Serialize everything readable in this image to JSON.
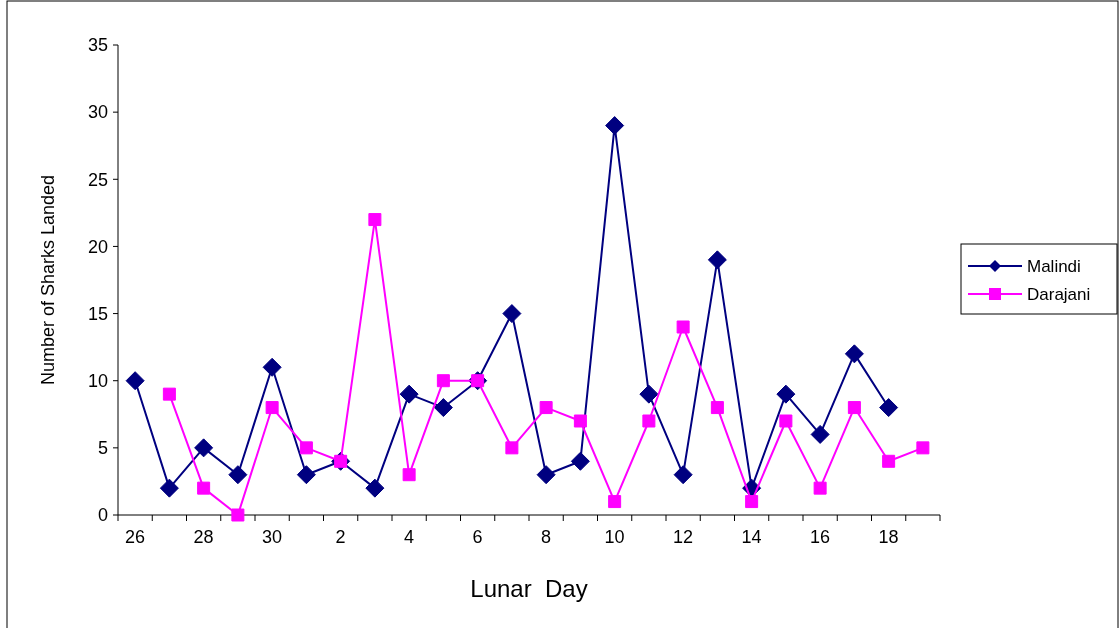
{
  "chart_data": {
    "type": "line",
    "xlabel": "Lunar  Day",
    "ylabel": "Number of Sharks Landed",
    "categories": [
      "26",
      null,
      "28",
      null,
      "30",
      null,
      "2",
      null,
      "4",
      null,
      "6",
      null,
      "8",
      null,
      "10",
      null,
      "12",
      null,
      "14",
      null,
      "16",
      null,
      "18",
      null
    ],
    "series": [
      {
        "name": "Malindi",
        "color": "#000080",
        "marker": "diamond",
        "values": [
          10,
          2,
          5,
          3,
          11,
          3,
          4,
          2,
          9,
          8,
          10,
          15,
          3,
          4,
          29,
          9,
          3,
          19,
          2,
          9,
          6,
          12,
          8,
          null
        ]
      },
      {
        "name": "Darajani",
        "color": "#ff00ff",
        "marker": "square",
        "values": [
          null,
          9,
          2,
          0,
          8,
          5,
          4,
          22,
          3,
          10,
          10,
          5,
          8,
          7,
          1,
          7,
          14,
          8,
          1,
          7,
          2,
          8,
          4,
          5
        ]
      }
    ],
    "ylim": [
      0,
      35
    ],
    "yticks": [
      0,
      5,
      10,
      15,
      20,
      25,
      30,
      35
    ],
    "grid": false,
    "legend": "right",
    "line_style": "solid"
  }
}
